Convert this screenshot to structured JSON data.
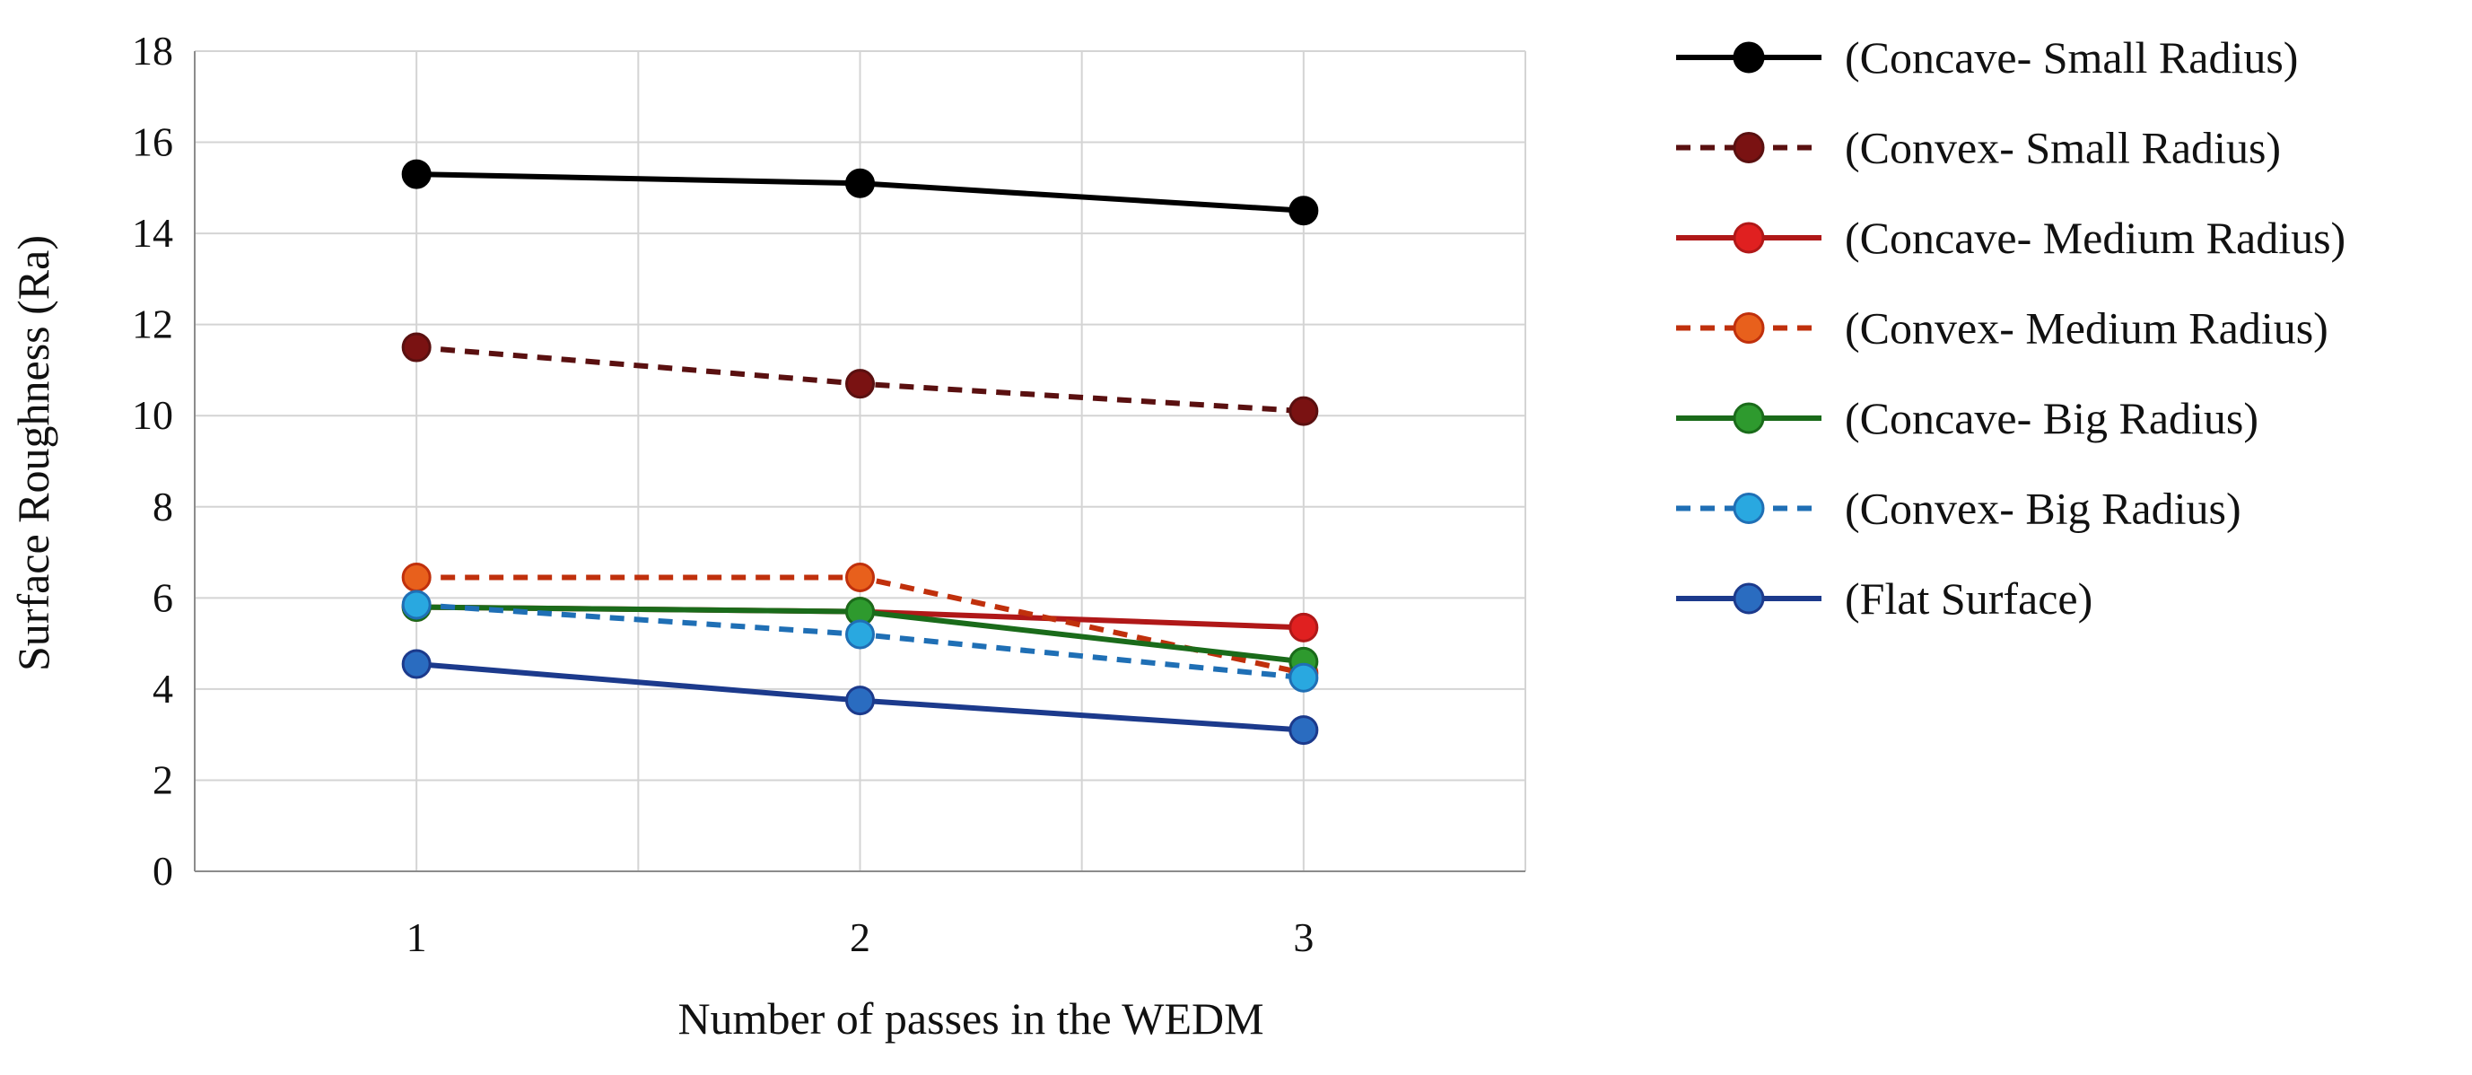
{
  "chart_data": {
    "type": "line",
    "title": "",
    "xlabel": "Number of passes in the WEDM",
    "ylabel": "Surface Roughness (Ra)",
    "x": [
      1,
      2,
      3
    ],
    "x_tick_labels": [
      "1",
      "2",
      "3"
    ],
    "ylim": [
      0,
      18
    ],
    "y_ticks": [
      0,
      2,
      4,
      6,
      8,
      10,
      12,
      14,
      16,
      18
    ],
    "y_tick_labels": [
      "0",
      "2",
      "4",
      "6",
      "8",
      "10",
      "12",
      "14",
      "16",
      "18"
    ],
    "grid": true,
    "legend_position": "right",
    "series": [
      {
        "name": "(Concave- Small Radius)",
        "values": [
          15.3,
          15.1,
          14.5
        ],
        "line_color": "#000000",
        "marker_color": "#000000",
        "dashed": false
      },
      {
        "name": "(Convex- Small Radius)",
        "values": [
          11.5,
          10.7,
          10.1
        ],
        "line_color": "#5a1010",
        "marker_color": "#7a1212",
        "dashed": true
      },
      {
        "name": "(Concave- Medium Radius)",
        "values": [
          5.8,
          5.7,
          5.35
        ],
        "line_color": "#b01818",
        "marker_color": "#e02020",
        "dashed": false
      },
      {
        "name": "(Convex- Medium Radius)",
        "values": [
          6.45,
          6.45,
          4.35
        ],
        "line_color": "#c0300c",
        "marker_color": "#e8601c",
        "dashed": true
      },
      {
        "name": "(Concave- Big Radius)",
        "values": [
          5.8,
          5.7,
          4.6
        ],
        "line_color": "#1a6b1a",
        "marker_color": "#2e9a2e",
        "dashed": false
      },
      {
        "name": "(Convex- Big Radius)",
        "values": [
          5.85,
          5.2,
          4.25
        ],
        "line_color": "#1f6fb5",
        "marker_color": "#29a8e0",
        "dashed": true
      },
      {
        "name": "(Flat Surface)",
        "values": [
          4.55,
          3.75,
          3.1
        ],
        "line_color": "#1c3a8c",
        "marker_color": "#2a6cc0",
        "dashed": false
      }
    ]
  }
}
